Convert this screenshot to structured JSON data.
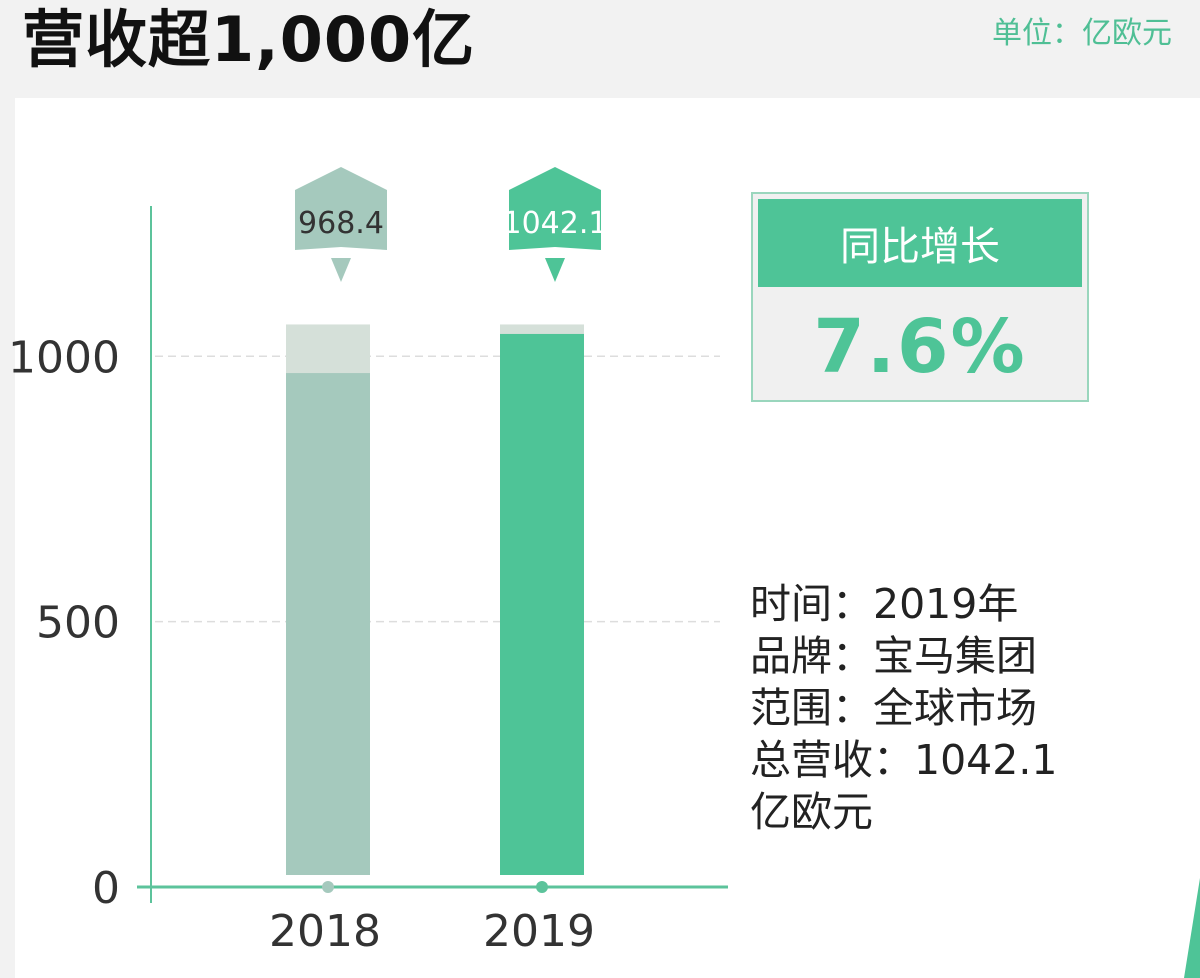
{
  "header": {
    "title": "营收超1,000亿",
    "unit": "单位：亿欧元"
  },
  "chart_data": {
    "type": "bar",
    "categories": [
      "2018",
      "2019"
    ],
    "values": [
      968.4,
      1042.1
    ],
    "value_labels": [
      "968.4",
      "1042.1"
    ],
    "yticks": [
      0,
      500,
      1000
    ],
    "ylim": [
      0,
      1060
    ],
    "colors": {
      "2018": "#a5c9bd",
      "2019": "#4ec497",
      "track": "#d5e0d9",
      "axis": "#5cc39b"
    },
    "grid": "dashed at 500 and 1000",
    "title": "",
    "xlabel": "",
    "ylabel": ""
  },
  "stat_box": {
    "label": "同比增长",
    "value": "7.6%"
  },
  "info": {
    "lines": [
      "时间：2019年",
      "品牌：宝马集团",
      "范围：全球市场",
      "总营收：1042.1",
      "亿欧元"
    ]
  },
  "colors": {
    "accent": "#4ec497",
    "muted": "#a5c9bd"
  }
}
